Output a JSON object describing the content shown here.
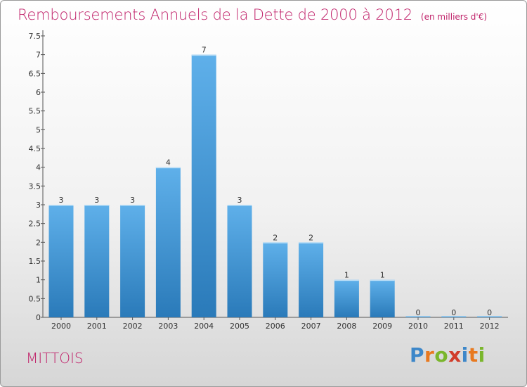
{
  "header": {
    "title": "Remboursements Annuels de la Dette de 2000 à 2012",
    "unit": "(en milliers d'€)"
  },
  "commune": "MITTOIS",
  "brand": {
    "logo_letters": [
      "P",
      "r",
      "o",
      "x",
      "i",
      "t",
      "i"
    ]
  },
  "colors": {
    "title": "#c0226a",
    "bar_light": "#5fb0ea",
    "bar_dark": "#2a7ab9",
    "logo": [
      "#3d87c9",
      "#e8791f",
      "#7ab62c",
      "#d13c2a",
      "#3d87c9",
      "#e8791f",
      "#7ab62c"
    ]
  },
  "chart_data": {
    "type": "bar",
    "title": "Remboursements Annuels de la Dette de 2000 à 2012",
    "xlabel": "",
    "ylabel": "",
    "categories": [
      "2000",
      "2001",
      "2002",
      "2003",
      "2004",
      "2005",
      "2006",
      "2007",
      "2008",
      "2009",
      "2010",
      "2011",
      "2012"
    ],
    "values": [
      3,
      3,
      3,
      4,
      7,
      3,
      2,
      2,
      1,
      1,
      0,
      0,
      0
    ],
    "data_labels": [
      "3",
      "3",
      "3",
      "4",
      "7",
      "3",
      "2",
      "2",
      "1",
      "1",
      "0",
      "0",
      "0"
    ],
    "ylim": [
      0,
      7.5
    ],
    "yticks": [
      0,
      0.5,
      1,
      1.5,
      2,
      2.5,
      3,
      3.5,
      4,
      4.5,
      5,
      5.5,
      6,
      6.5,
      7,
      7.5
    ],
    "ytick_labels": [
      "0",
      "0.5",
      "1",
      "1.5",
      "2",
      "2.5",
      "3",
      "3.5",
      "4",
      "4.5",
      "5",
      "5.5",
      "6",
      "6.5",
      "7",
      "7.5"
    ],
    "grid": false,
    "legend": "none"
  }
}
